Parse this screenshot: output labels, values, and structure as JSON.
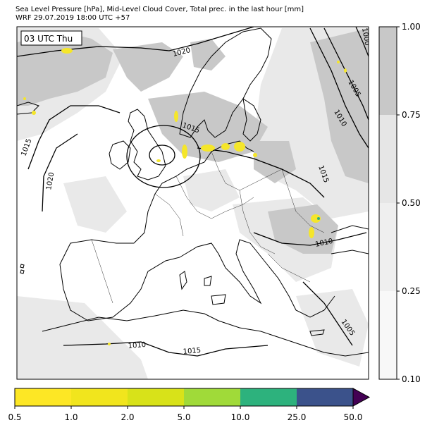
{
  "header": {
    "line1": "Sea Level Pressure [hPa], Mid-Level Cloud Cover, Total prec. in the last hour [mm]",
    "line2": "WRF 29.07.2019 18:00 UTC +57"
  },
  "time_label": "03 UTC Thu",
  "cloud_colorbar": {
    "ticks": [
      "1.00",
      "0.75",
      "0.50",
      "0.25",
      "0.10"
    ],
    "colors": [
      "#c8c8c8",
      "#e6e6e6",
      "#efefef",
      "#f8f8f8"
    ]
  },
  "precip_colorbar": {
    "ticks": [
      "0.5",
      "1.0",
      "2.0",
      "5.0",
      "10.0",
      "25.0",
      "50.0"
    ],
    "colors": [
      "#fde725",
      "#f1e51d",
      "#d8e219",
      "#a0da39",
      "#2db27d",
      "#3b528b",
      "#440154"
    ]
  },
  "isobar_labels": [
    "1020",
    "1000",
    "1005",
    "1010",
    "1015",
    "1015",
    "1020",
    "1015",
    "1010",
    "1005",
    "1010",
    "1015"
  ],
  "colors": {
    "coast": "#000000",
    "isobar": "#000000",
    "cloud_light": "#e6e6e6",
    "cloud_dark": "#c8c8c8",
    "precip": "#f5e62a"
  }
}
